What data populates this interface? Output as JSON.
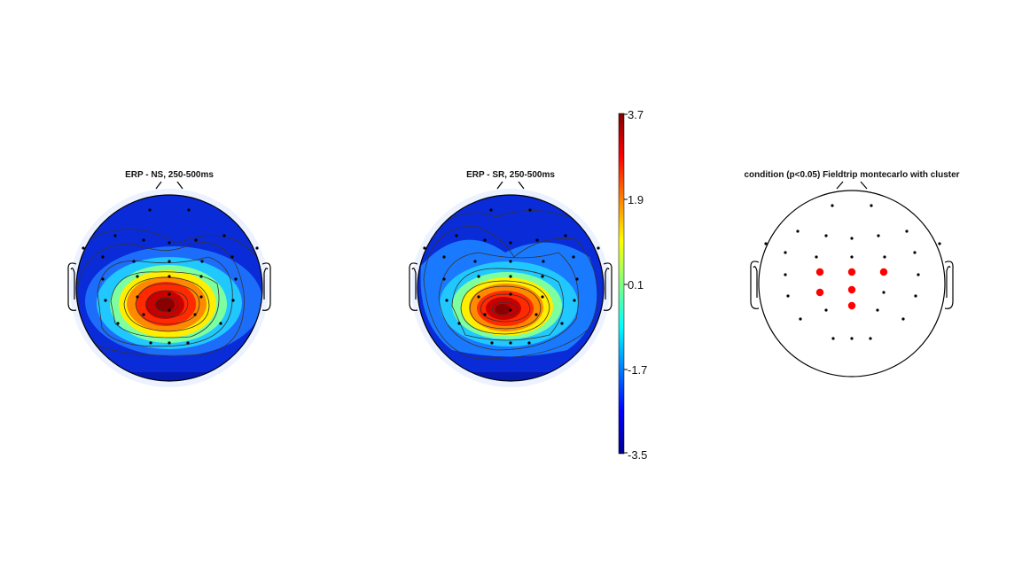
{
  "figure": {
    "panels": [
      {
        "id": "ns",
        "title": "ERP - NS, 250-500ms",
        "type": "topomap"
      },
      {
        "id": "sr",
        "title": "ERP - SR, 250-500ms",
        "type": "topomap"
      },
      {
        "id": "cluster",
        "title": "condition (p<0.05) Fieldtrip montecarlo with cluster",
        "type": "sensor-layout"
      }
    ],
    "colorbar": {
      "ticks": [
        "3.7",
        "1.9",
        "0.1",
        "-1.7",
        "-3.5"
      ],
      "range": [
        -3.5,
        3.7
      ],
      "colormap": "jet"
    },
    "colors": {
      "sensor": "#000000",
      "significant_sensor": "#ff0000",
      "outline": "#000000",
      "contour": "#333333"
    }
  }
}
